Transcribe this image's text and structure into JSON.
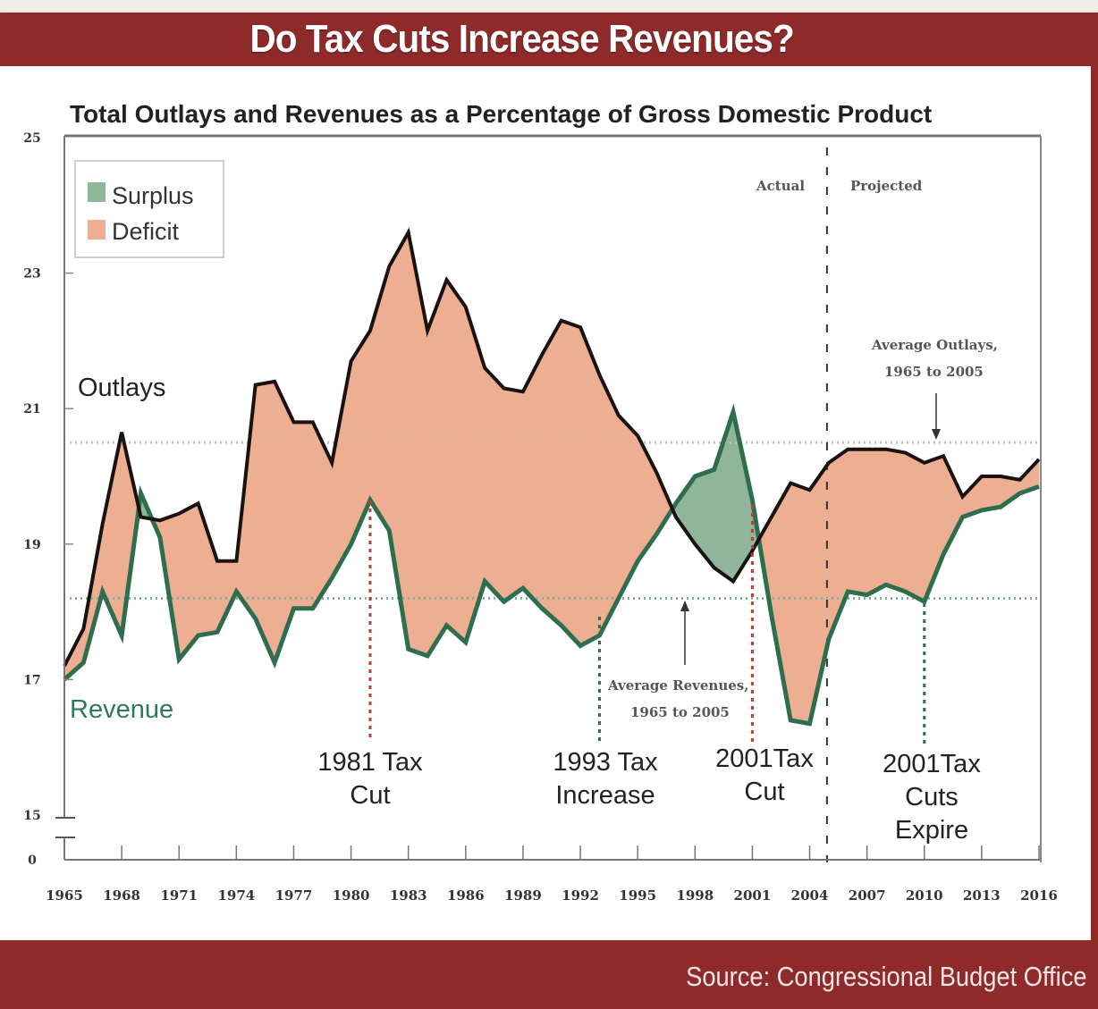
{
  "header": {
    "title": "Do Tax Cuts Increase Revenues?"
  },
  "footer": {
    "source": "Source: Congressional Budget Office"
  },
  "colors": {
    "frame": "#8e2a2a",
    "deficit_fill": "#eeae91",
    "surplus_fill": "#8fb59a",
    "outlays_line": "#1a1111",
    "revenue_line": "#2e6e4e",
    "average_outlays_line": "#d9b8b0",
    "average_revenues_line": "#7fb3a0"
  },
  "chart_data": {
    "type": "area",
    "title": "Total Outlays and Revenues as a Percentage of Gross Domestic Product",
    "xlabel": "",
    "ylabel": "",
    "x": [
      1965,
      1966,
      1967,
      1968,
      1969,
      1970,
      1971,
      1972,
      1973,
      1974,
      1975,
      1976,
      1977,
      1978,
      1979,
      1980,
      1981,
      1982,
      1983,
      1984,
      1985,
      1986,
      1987,
      1988,
      1989,
      1990,
      1991,
      1992,
      1993,
      1994,
      1995,
      1996,
      1997,
      1998,
      1999,
      2000,
      2001,
      2002,
      2003,
      2004,
      2005,
      2006,
      2007,
      2008,
      2009,
      2010,
      2011,
      2012,
      2013,
      2014,
      2015,
      2016
    ],
    "series": [
      {
        "name": "Outlays",
        "values": [
          17.2,
          17.75,
          19.3,
          20.65,
          19.4,
          19.35,
          19.45,
          19.6,
          18.75,
          18.75,
          21.35,
          21.4,
          20.8,
          20.8,
          20.2,
          21.7,
          22.15,
          23.1,
          23.6,
          22.15,
          22.9,
          22.5,
          21.6,
          21.3,
          21.25,
          21.8,
          22.3,
          22.2,
          21.5,
          20.9,
          20.6,
          20.05,
          19.4,
          19.0,
          18.65,
          18.45,
          18.9,
          19.4,
          19.9,
          19.8,
          20.2,
          20.4,
          20.4,
          20.4,
          20.35,
          20.2,
          20.3,
          19.7,
          20.0,
          20.0,
          19.95,
          20.25
        ]
      },
      {
        "name": "Revenue",
        "values": [
          17.0,
          17.25,
          18.3,
          17.65,
          19.75,
          19.1,
          17.3,
          17.65,
          17.7,
          18.3,
          17.9,
          17.25,
          18.05,
          18.05,
          18.5,
          19.0,
          19.65,
          19.2,
          17.45,
          17.35,
          17.8,
          17.55,
          18.45,
          18.15,
          18.35,
          18.05,
          17.8,
          17.5,
          17.65,
          18.2,
          18.75,
          19.15,
          19.6,
          20.0,
          20.1,
          20.95,
          19.65,
          17.95,
          16.4,
          16.35,
          17.6,
          18.3,
          18.25,
          18.4,
          18.3,
          18.15,
          18.85,
          19.4,
          19.5,
          19.55,
          19.75,
          19.85
        ]
      }
    ],
    "reference_lines": [
      {
        "name": "Average Outlays, 1965 to 2005",
        "value": 20.5
      },
      {
        "name": "Average Revenues, 1965 to 2005",
        "value": 18.2
      }
    ],
    "actual_projected_split_year": 2005,
    "xticks": [
      "1965",
      "1968",
      "1971",
      "1974",
      "1977",
      "1980",
      "1983",
      "1986",
      "1989",
      "1992",
      "1995",
      "1998",
      "2001",
      "2004",
      "2007",
      "2010",
      "2013",
      "2016"
    ],
    "yticks": [
      "0",
      "15",
      "17",
      "19",
      "21",
      "23",
      "25"
    ],
    "ylim": [
      15,
      25
    ],
    "y_axis_break": true,
    "grid": false,
    "legend": {
      "placement": "top-left",
      "entries": [
        "Surplus",
        "Deficit"
      ]
    },
    "labels": {
      "outlays": "Outlays",
      "revenue": "Revenue",
      "actual": "Actual",
      "projected": "Projected",
      "avg_outlays_line1": "Average Outlays,",
      "avg_outlays_line2": "1965 to 2005",
      "avg_revenues_line1": "Average Revenues,",
      "avg_revenues_line2": "1965 to 2005"
    },
    "annotations": [
      {
        "year": 1981,
        "lines": [
          "1981 Tax",
          "Cut"
        ]
      },
      {
        "year": 1993,
        "lines": [
          "1993 Tax",
          "Increase"
        ]
      },
      {
        "year": 2001,
        "lines": [
          "2001Tax",
          "Cut"
        ]
      },
      {
        "year": 2010,
        "lines": [
          "2001Tax",
          "Cuts",
          "Expire"
        ]
      }
    ]
  }
}
